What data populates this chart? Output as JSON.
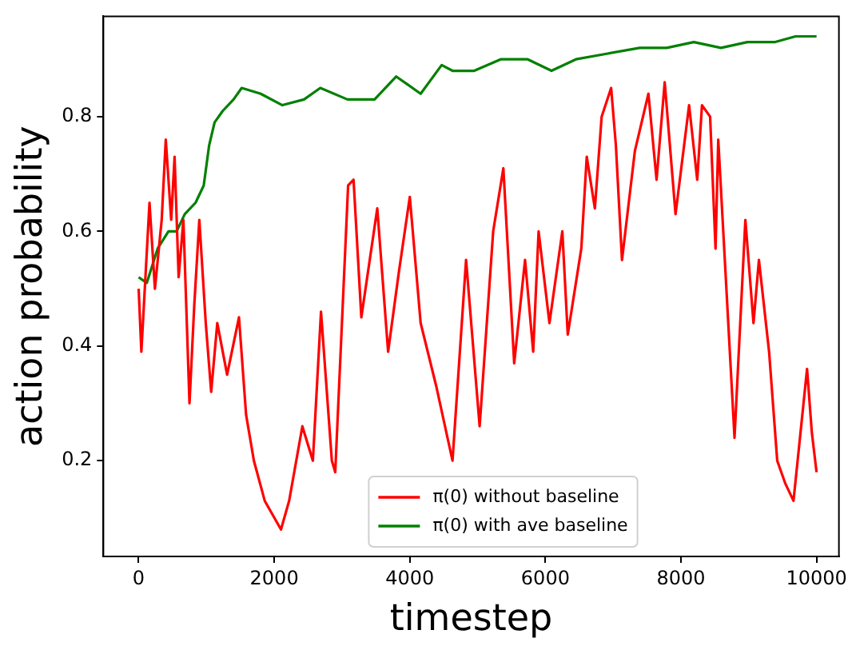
{
  "chart_data": {
    "type": "line",
    "xlabel": "timestep",
    "ylabel": "action probability",
    "xlim": [
      -520,
      10330
    ],
    "ylim": [
      0.033,
      0.975
    ],
    "xticks": [
      0,
      2000,
      4000,
      6000,
      8000,
      10000
    ],
    "yticks": [
      0.2,
      0.4,
      0.6,
      0.8
    ],
    "grid": false,
    "legend": "bottom",
    "marker": "none",
    "line_style": "solid",
    "series": [
      {
        "name": "π(0) without baseline",
        "color": "#ff0000",
        "x": [
          0,
          40,
          160,
          240,
          340,
          400,
          480,
          530,
          590,
          660,
          750,
          820,
          895,
          990,
          1070,
          1160,
          1305,
          1480,
          1585,
          1700,
          1860,
          2100,
          2220,
          2415,
          2570,
          2690,
          2850,
          2900,
          3090,
          3170,
          3285,
          3520,
          3680,
          3840,
          4000,
          4160,
          4390,
          4630,
          4830,
          5030,
          5230,
          5380,
          5540,
          5700,
          5820,
          5900,
          6060,
          6250,
          6330,
          6530,
          6610,
          6730,
          6830,
          6970,
          7040,
          7130,
          7320,
          7520,
          7640,
          7760,
          7920,
          8120,
          8240,
          8310,
          8430,
          8510,
          8550,
          8790,
          8950,
          9070,
          9150,
          9300,
          9420,
          9540,
          9660,
          9860,
          9930,
          10000
        ],
        "values": [
          0.5,
          0.39,
          0.65,
          0.5,
          0.62,
          0.76,
          0.62,
          0.73,
          0.52,
          0.62,
          0.3,
          0.47,
          0.62,
          0.44,
          0.32,
          0.44,
          0.35,
          0.45,
          0.28,
          0.2,
          0.13,
          0.08,
          0.13,
          0.26,
          0.2,
          0.46,
          0.2,
          0.18,
          0.68,
          0.69,
          0.45,
          0.64,
          0.39,
          0.53,
          0.66,
          0.44,
          0.33,
          0.2,
          0.55,
          0.26,
          0.6,
          0.71,
          0.37,
          0.55,
          0.39,
          0.6,
          0.44,
          0.6,
          0.42,
          0.57,
          0.73,
          0.64,
          0.8,
          0.85,
          0.75,
          0.55,
          0.74,
          0.84,
          0.69,
          0.86,
          0.63,
          0.82,
          0.69,
          0.82,
          0.8,
          0.57,
          0.76,
          0.24,
          0.62,
          0.44,
          0.55,
          0.39,
          0.2,
          0.16,
          0.13,
          0.36,
          0.25,
          0.18
        ]
      },
      {
        "name": "π(0) with ave baseline",
        "color": "#008000",
        "x": [
          0,
          120,
          280,
          440,
          560,
          680,
          840,
          960,
          1040,
          1120,
          1240,
          1400,
          1520,
          1800,
          2120,
          2440,
          2680,
          3080,
          3480,
          3800,
          4160,
          4470,
          4630,
          4870,
          4950,
          5340,
          5740,
          6090,
          6450,
          6920,
          7390,
          7790,
          8190,
          8590,
          8980,
          9380,
          9690,
          10000
        ],
        "values": [
          0.52,
          0.51,
          0.57,
          0.6,
          0.6,
          0.63,
          0.65,
          0.68,
          0.75,
          0.79,
          0.81,
          0.83,
          0.85,
          0.84,
          0.82,
          0.83,
          0.85,
          0.83,
          0.83,
          0.87,
          0.84,
          0.89,
          0.88,
          0.88,
          0.88,
          0.9,
          0.9,
          0.88,
          0.9,
          0.91,
          0.92,
          0.92,
          0.93,
          0.92,
          0.93,
          0.93,
          0.94,
          0.94
        ]
      }
    ]
  }
}
